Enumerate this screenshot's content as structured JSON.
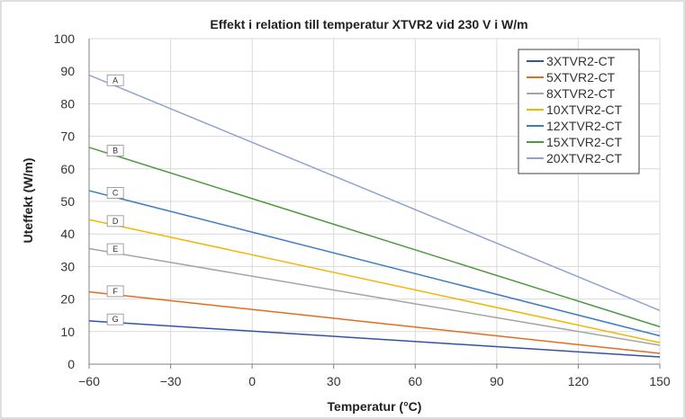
{
  "chart_data": {
    "type": "line",
    "title": "Effekt i relation till temperatur XTVR2 vid 230 V i W/m",
    "xlabel": "Temperatur (°C)",
    "ylabel": "Uteffekt (W/m)",
    "xlim": [
      -60,
      150
    ],
    "ylim": [
      0,
      100
    ],
    "xticks": [
      -60,
      -30,
      0,
      30,
      60,
      90,
      120,
      150
    ],
    "yticks": [
      0,
      10,
      20,
      30,
      40,
      50,
      60,
      70,
      80,
      90,
      100
    ],
    "xtick_labels": [
      "−60",
      "−30",
      "0",
      "30",
      "60",
      "90",
      "120",
      "150"
    ],
    "ytick_labels": [
      "0",
      "10",
      "20",
      "30",
      "40",
      "50",
      "60",
      "70",
      "80",
      "90",
      "100"
    ],
    "grid": true,
    "legend_position": "top-right",
    "series": [
      {
        "name": "3XTVR2-CT",
        "tag": "G",
        "color": "#2f55a4",
        "x": [
          -60,
          150
        ],
        "y": [
          13.3,
          2.2
        ]
      },
      {
        "name": "5XTVR2-CT",
        "tag": "F",
        "color": "#e36c1e",
        "x": [
          -60,
          150
        ],
        "y": [
          22.2,
          3.3
        ]
      },
      {
        "name": "8XTVR2-CT",
        "tag": "E",
        "color": "#a5a5a5",
        "x": [
          -60,
          150
        ],
        "y": [
          35.5,
          5.8
        ]
      },
      {
        "name": "10XTVR2-CT",
        "tag": "D",
        "color": "#f2b705",
        "x": [
          -60,
          150
        ],
        "y": [
          44.4,
          6.6
        ]
      },
      {
        "name": "12XTVR2-CT",
        "tag": "C",
        "color": "#3d7cc4",
        "x": [
          -60,
          150
        ],
        "y": [
          53.3,
          8.7
        ]
      },
      {
        "name": "15XTVR2-CT",
        "tag": "B",
        "color": "#4e9a3e",
        "x": [
          -60,
          150
        ],
        "y": [
          66.6,
          11.5
        ]
      },
      {
        "name": "20XTVR2-CT",
        "tag": "A",
        "color": "#8fa4d0",
        "x": [
          -60,
          150
        ],
        "y": [
          88.8,
          16.5
        ]
      }
    ]
  }
}
